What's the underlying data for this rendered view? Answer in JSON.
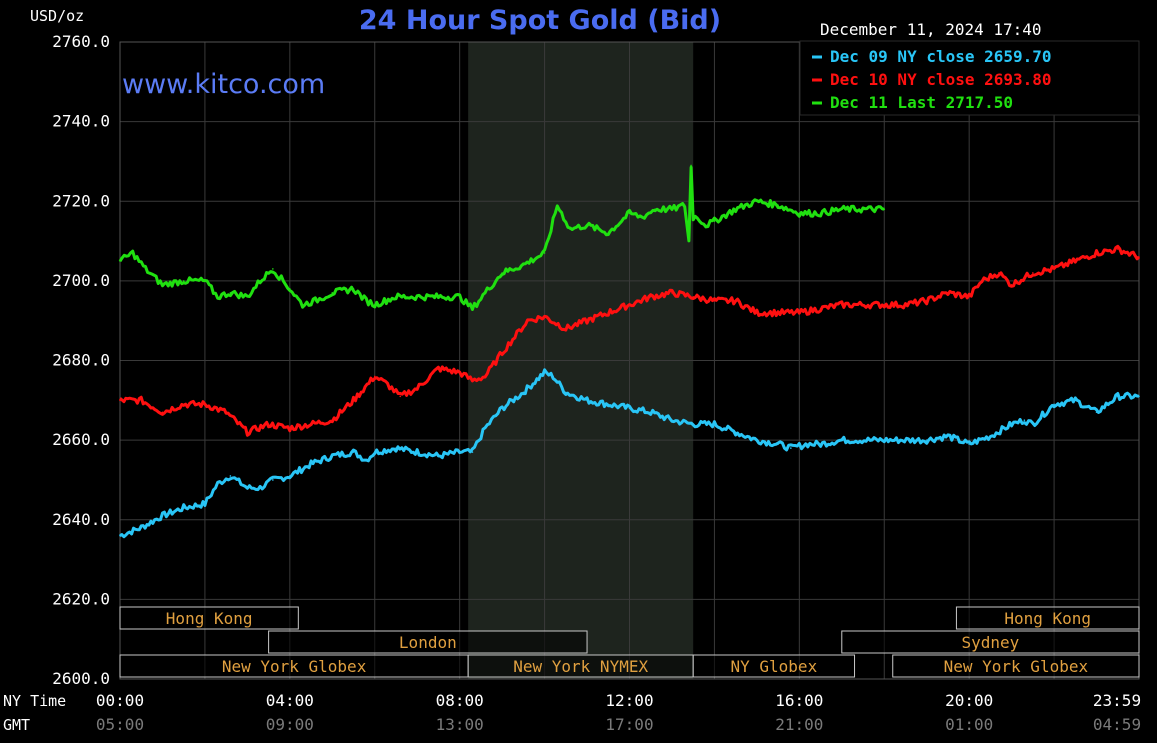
{
  "chart_data": {
    "type": "line",
    "title": "24 Hour Spot Gold (Bid)",
    "watermark": "www.kitco.com",
    "timestamp": "December 11, 2024 17:40",
    "ylabel": "USD/oz",
    "ylim": [
      2600,
      2760
    ],
    "y_ticks": [
      "2760.0",
      "2740.0",
      "2720.0",
      "2700.0",
      "2680.0",
      "2660.0",
      "2640.0",
      "2620.0",
      "2600.0"
    ],
    "y_tick_values": [
      2760,
      2740,
      2720,
      2700,
      2680,
      2660,
      2640,
      2620,
      2600
    ],
    "xlim": [
      0,
      24
    ],
    "x_row_labels": {
      "ny": "NY Time",
      "gmt": "GMT"
    },
    "x_ticks_ny": [
      "00:00",
      "04:00",
      "08:00",
      "12:00",
      "16:00",
      "20:00",
      "23:59"
    ],
    "x_ticks_gmt": [
      "05:00",
      "09:00",
      "13:00",
      "17:00",
      "21:00",
      "01:00",
      "04:59"
    ],
    "x_tick_values": [
      0,
      4,
      8,
      12,
      16,
      20,
      23.98
    ],
    "grid": true,
    "legend_position": "top-right",
    "shaded_interval_hours": [
      8.2,
      13.5
    ],
    "colors": {
      "background": "#000000",
      "grid": "#3a3a3a",
      "axis_text": "#ffffff",
      "title": "#4a6cf0",
      "watermark": "#5b7cf5",
      "shade": "#1e241e",
      "session_text": "#e0a040",
      "gmt_text": "#7a7a7a"
    },
    "series": [
      {
        "name": "Dec 09 NY close",
        "value_label": "2659.70",
        "color": "#29c5f6",
        "x": [
          0,
          0.5,
          1,
          1.5,
          2,
          2.3,
          2.6,
          3,
          3.3,
          3.6,
          4,
          4.5,
          5,
          5.5,
          5.8,
          6,
          6.5,
          7,
          7.5,
          8,
          8.3,
          8.6,
          9,
          9.5,
          10,
          10.2,
          10.5,
          11,
          11.5,
          12,
          12.5,
          13,
          13.5,
          14,
          14.5,
          15,
          15.5,
          15.8,
          16.2,
          16.5,
          17,
          18,
          19,
          19.5,
          20,
          20.5,
          21,
          21.3,
          21.5,
          22,
          22.5,
          23,
          23.5,
          24
        ],
        "y": [
          2636,
          2638,
          2641,
          2643,
          2644,
          2649,
          2651,
          2648,
          2648,
          2650,
          2651,
          2654,
          2656,
          2657,
          2655,
          2657,
          2658,
          2657,
          2656,
          2657,
          2657,
          2663,
          2668,
          2672,
          2677,
          2676,
          2672,
          2670,
          2669,
          2668,
          2667,
          2665,
          2664,
          2664,
          2662,
          2660,
          2659,
          2658,
          2659,
          2659,
          2660,
          2660,
          2660,
          2661,
          2659,
          2661,
          2664,
          2665,
          2664,
          2669,
          2670,
          2667,
          2671,
          2671
        ]
      },
      {
        "name": "Dec 10 NY close",
        "value_label": "2693.80",
        "color": "#ff1010",
        "x": [
          0,
          0.5,
          1,
          1.5,
          2,
          2.5,
          3,
          3.5,
          4,
          4.5,
          5,
          5.5,
          6,
          6.3,
          6.6,
          7,
          7.5,
          8,
          8.3,
          8.6,
          9,
          9.3,
          9.6,
          10,
          10.5,
          11,
          11.5,
          12,
          12.5,
          13,
          13.5,
          14,
          14.5,
          15,
          15.5,
          16,
          16.5,
          17,
          18,
          18.5,
          19,
          19.5,
          20,
          20.3,
          20.7,
          21,
          21.5,
          22,
          22.5,
          23,
          23.5,
          24
        ],
        "y": [
          2670,
          2670,
          2667,
          2669,
          2669,
          2667,
          2662,
          2664,
          2663,
          2664,
          2665,
          2670,
          2676,
          2674,
          2671,
          2673,
          2678,
          2677,
          2675,
          2676,
          2682,
          2686,
          2690,
          2691,
          2688,
          2690,
          2692,
          2694,
          2696,
          2697,
          2696,
          2695,
          2695,
          2692,
          2692,
          2692,
          2693,
          2694,
          2694,
          2694,
          2695,
          2697,
          2696,
          2700,
          2702,
          2699,
          2702,
          2703,
          2705,
          2707,
          2708,
          2706
        ]
      },
      {
        "name": "Dec 11 Last",
        "value_label": "2717.50",
        "color": "#20e010",
        "x": [
          0,
          0.3,
          0.6,
          1,
          1.5,
          2,
          2.3,
          2.6,
          3,
          3.3,
          3.6,
          4,
          4.3,
          4.6,
          5,
          5.5,
          5.8,
          6,
          6.5,
          7,
          7.5,
          8,
          8.3,
          8.6,
          9,
          9.5,
          10,
          10.3,
          10.6,
          11,
          11.5,
          12,
          12.3,
          12.6,
          13,
          13.3,
          13.4,
          13.45,
          13.5,
          13.6,
          13.8,
          14,
          14.5,
          15,
          15.5,
          16,
          16.5,
          17,
          17.5,
          18
        ],
        "y": [
          2705,
          2707,
          2703,
          2699,
          2700,
          2700,
          2696,
          2697,
          2696,
          2700,
          2703,
          2698,
          2694,
          2695,
          2697,
          2698,
          2695,
          2694,
          2696,
          2696,
          2696,
          2696,
          2693,
          2697,
          2702,
          2704,
          2707,
          2719,
          2713,
          2714,
          2712,
          2717,
          2716,
          2718,
          2718,
          2719,
          2710,
          2729,
          2716,
          2716,
          2714,
          2715,
          2718,
          2720,
          2719,
          2717,
          2717,
          2718,
          2718,
          2718
        ]
      }
    ],
    "sessions": [
      {
        "label": "Hong Kong",
        "row": 0,
        "start": 0,
        "end": 4.2
      },
      {
        "label": "Hong Kong",
        "row": 0,
        "start": 19.7,
        "end": 24
      },
      {
        "label": "London",
        "row": 1,
        "start": 3.5,
        "end": 11
      },
      {
        "label": "Sydney",
        "row": 1,
        "start": 17,
        "end": 24
      },
      {
        "label": "New York Globex",
        "row": 2,
        "start": 0,
        "end": 8.2
      },
      {
        "label": "New York NYMEX",
        "row": 2,
        "start": 8.2,
        "end": 13.5
      },
      {
        "label": "NY Globex",
        "row": 2,
        "start": 13.5,
        "end": 17.3
      },
      {
        "label": "New York Globex",
        "row": 2,
        "start": 18.2,
        "end": 24
      }
    ]
  }
}
